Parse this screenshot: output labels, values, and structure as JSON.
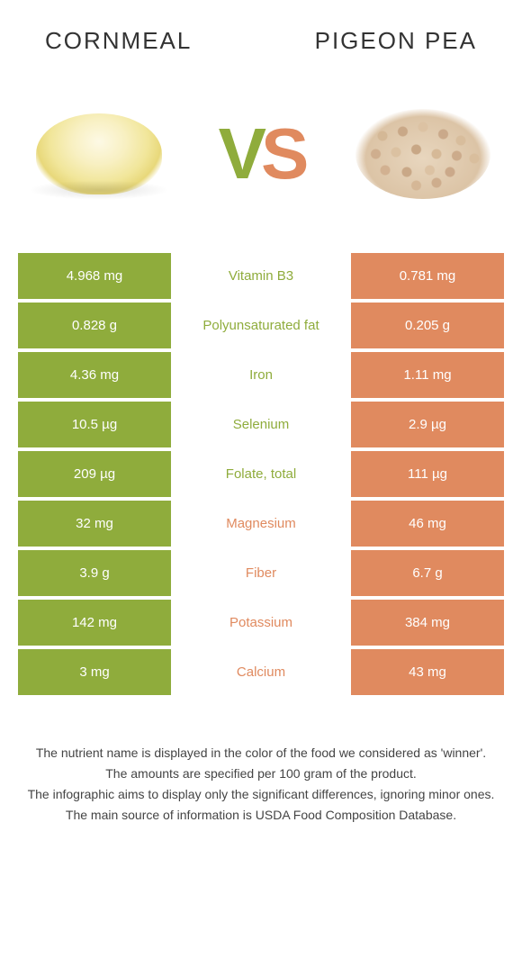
{
  "header": {
    "left_title": "Cornmeal",
    "right_title": "Pigeon pea"
  },
  "vs": {
    "v": "V",
    "s": "S"
  },
  "colors": {
    "left": "#8fac3c",
    "right": "#e08a5f"
  },
  "rows": [
    {
      "left": "4.968 mg",
      "label": "Vitamin B3",
      "right": "0.781 mg",
      "winner": "left"
    },
    {
      "left": "0.828 g",
      "label": "Polyunsaturated fat",
      "right": "0.205 g",
      "winner": "left"
    },
    {
      "left": "4.36 mg",
      "label": "Iron",
      "right": "1.11 mg",
      "winner": "left"
    },
    {
      "left": "10.5 µg",
      "label": "Selenium",
      "right": "2.9 µg",
      "winner": "left"
    },
    {
      "left": "209 µg",
      "label": "Folate, total",
      "right": "111 µg",
      "winner": "left"
    },
    {
      "left": "32 mg",
      "label": "Magnesium",
      "right": "46 mg",
      "winner": "right"
    },
    {
      "left": "3.9 g",
      "label": "Fiber",
      "right": "6.7 g",
      "winner": "right"
    },
    {
      "left": "142 mg",
      "label": "Potassium",
      "right": "384 mg",
      "winner": "right"
    },
    {
      "left": "3 mg",
      "label": "Calcium",
      "right": "43 mg",
      "winner": "right"
    }
  ],
  "footer": {
    "l1": "The nutrient name is displayed in the color of the food we considered as 'winner'.",
    "l2": "The amounts are specified per 100 gram of the product.",
    "l3": "The infographic aims to display only the significant differences, ignoring minor ones.",
    "l4": "The main source of information is USDA Food Composition Database."
  }
}
